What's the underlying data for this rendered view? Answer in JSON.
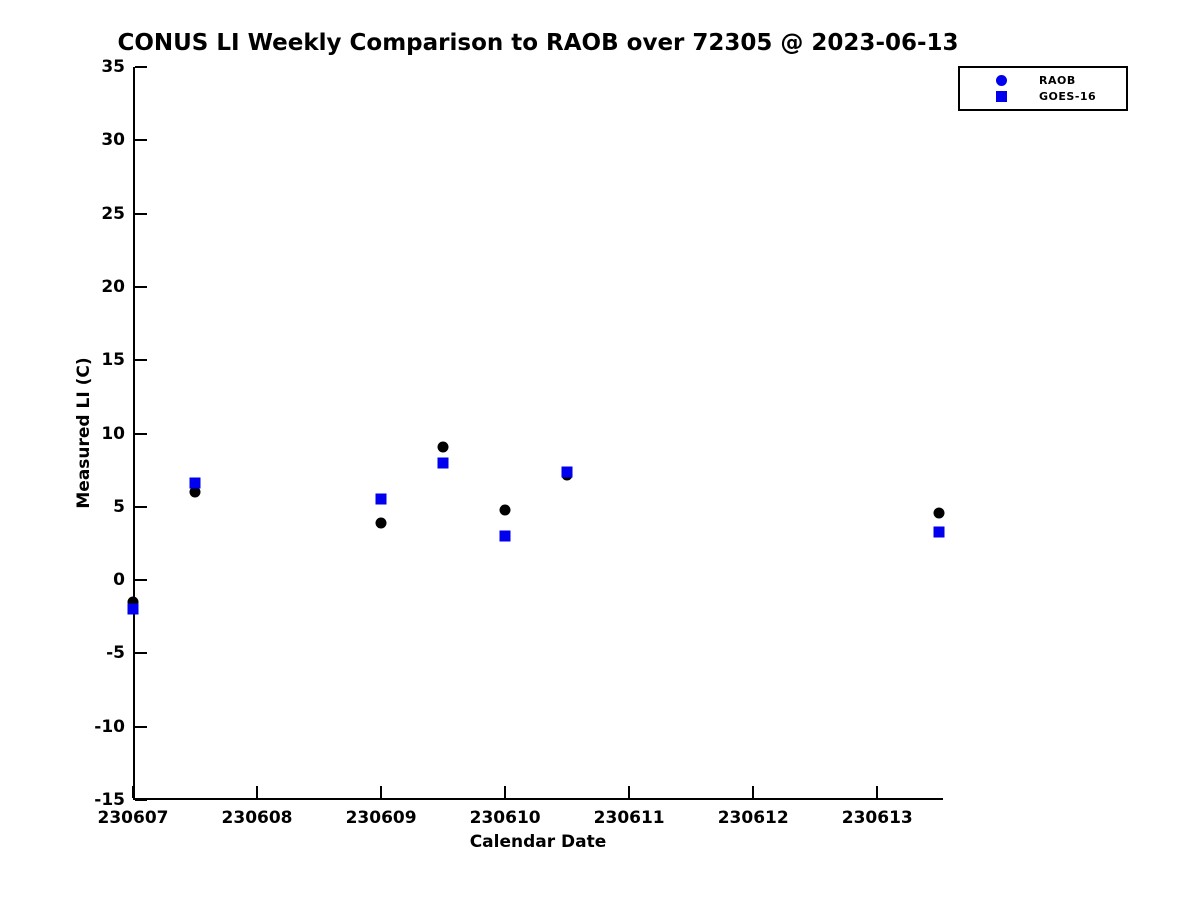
{
  "chart_data": {
    "type": "scatter",
    "title": "CONUS LI Weekly Comparison to RAOB over 72305 @ 2023-06-13",
    "xlabel": "Calendar Date",
    "ylabel": "Measured LI (C)",
    "xlim": [
      230607,
      230613.53
    ],
    "ylim": [
      -15,
      35
    ],
    "x_ticks": [
      230607,
      230608,
      230609,
      230610,
      230611,
      230612,
      230613
    ],
    "y_ticks": [
      35,
      30,
      25,
      20,
      15,
      10,
      5,
      0,
      -5,
      -10,
      -15
    ],
    "grid": false,
    "legend_position": "top-right",
    "axis_color": "#000000",
    "marker_size_px": 11,
    "series": [
      {
        "name": "RAOB",
        "marker": "circle",
        "color": "#000000",
        "legend_marker_color": "#0000EE",
        "points": [
          [
            230607.0,
            -1.5
          ],
          [
            230607.5,
            6.0
          ],
          [
            230609.0,
            3.9
          ],
          [
            230609.5,
            9.1
          ],
          [
            230610.0,
            4.8
          ],
          [
            230610.5,
            7.2
          ],
          [
            230613.5,
            4.6
          ]
        ]
      },
      {
        "name": "GOES-16",
        "marker": "square",
        "color": "#0000EE",
        "legend_marker_color": "#0000EE",
        "points": [
          [
            230607.0,
            -2.0
          ],
          [
            230607.5,
            6.6
          ],
          [
            230609.0,
            5.5
          ],
          [
            230609.5,
            8.0
          ],
          [
            230610.0,
            3.0
          ],
          [
            230610.5,
            7.4
          ],
          [
            230613.5,
            3.3
          ]
        ]
      }
    ]
  }
}
